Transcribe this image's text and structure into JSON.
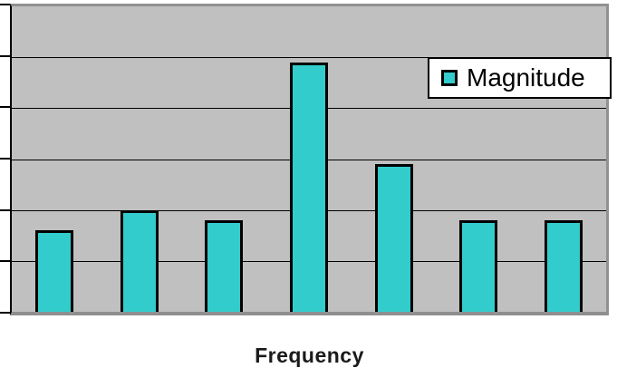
{
  "chart_data": {
    "type": "bar",
    "values": [
      1.6,
      2.0,
      1.8,
      4.9,
      2.9,
      1.8,
      1.8
    ],
    "categories": [
      "",
      "",
      "",
      "",
      "",
      "",
      ""
    ],
    "title": "",
    "xlabel": "Frequency",
    "ylabel": "",
    "ylim": [
      0,
      6
    ],
    "y_gridline_step": 1,
    "grid": "horizontal",
    "y_tick_labels_visible": false,
    "legend": {
      "label": "Magnitude",
      "position": "top-right"
    },
    "colors": {
      "bar_fill": "#33cccc",
      "bar_border": "#000000",
      "plot_background": "#c0c0c0",
      "gridline": "#000000",
      "plot_border": "#919191",
      "axis_line": "#000000",
      "legend_background": "#ffffff",
      "legend_border": "#000000",
      "text": "#000000",
      "page_background": "#ffffff"
    }
  }
}
